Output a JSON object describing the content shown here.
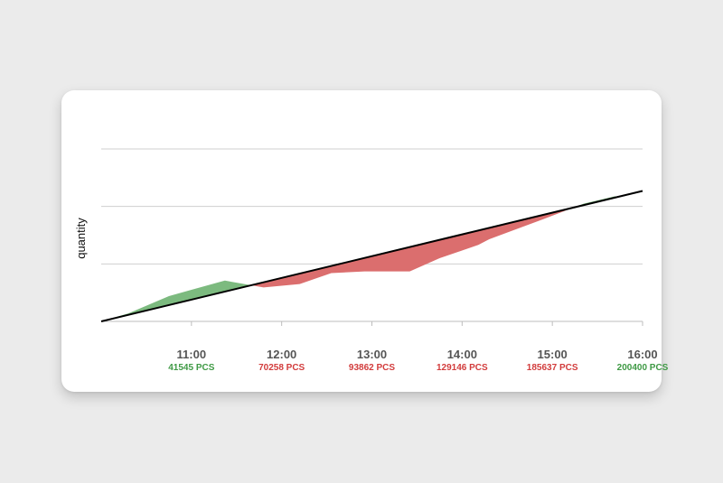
{
  "chart_data": {
    "type": "area",
    "title": "",
    "xlabel": "",
    "ylabel": "quantity",
    "x_ticks": [
      {
        "time": "11:00",
        "value_label": "41545 PCS",
        "status": "above"
      },
      {
        "time": "12:00",
        "value_label": "70258 PCS",
        "status": "below"
      },
      {
        "time": "13:00",
        "value_label": "93862 PCS",
        "status": "below"
      },
      {
        "time": "14:00",
        "value_label": "129146 PCS",
        "status": "below"
      },
      {
        "time": "15:00",
        "value_label": "185637 PCS",
        "status": "below"
      },
      {
        "time": "16:00",
        "value_label": "200400 PCS",
        "status": "above"
      }
    ],
    "xlim": [
      10.0,
      16.0
    ],
    "ylim": [
      0,
      300000
    ],
    "y_gridlines": [
      0,
      100000,
      200000,
      300000
    ],
    "target_line": [
      {
        "t": 10.0,
        "v": 0
      },
      {
        "t": 16.0,
        "v": 227000
      }
    ],
    "actual": [
      {
        "t": 10.0,
        "v": 0
      },
      {
        "t": 10.3,
        "v": 14000
      },
      {
        "t": 10.75,
        "v": 44000
      },
      {
        "t": 11.0,
        "v": 55000
      },
      {
        "t": 11.37,
        "v": 71000
      },
      {
        "t": 11.8,
        "v": 59000
      },
      {
        "t": 12.2,
        "v": 65000
      },
      {
        "t": 12.55,
        "v": 84000
      },
      {
        "t": 12.92,
        "v": 87000
      },
      {
        "t": 13.42,
        "v": 87000
      },
      {
        "t": 13.75,
        "v": 110000
      },
      {
        "t": 14.18,
        "v": 133000
      },
      {
        "t": 14.3,
        "v": 143000
      },
      {
        "t": 14.9,
        "v": 178000
      },
      {
        "t": 15.35,
        "v": 205000
      },
      {
        "t": 15.7,
        "v": 218000
      }
    ],
    "colors": {
      "above": "#7cba7f",
      "below": "#db6e6e",
      "above_text": "#3f9a45",
      "below_text": "#d23c3c",
      "target": "#000000",
      "grid": "#cfcfcf"
    }
  }
}
